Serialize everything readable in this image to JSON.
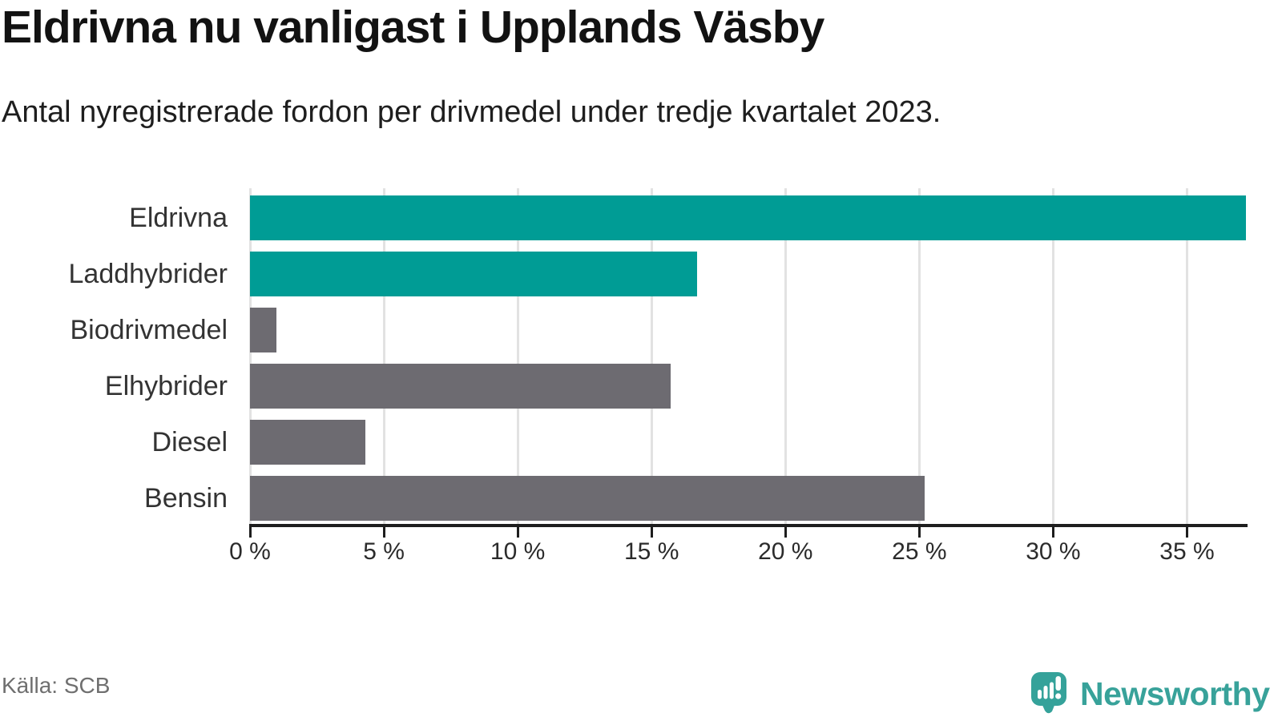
{
  "header": {
    "title": "Eldrivna nu vanligast i Upplands Väsby",
    "subtitle": "Antal nyregistrerade fordon per drivmedel under tredje kvartalet 2023."
  },
  "footer": {
    "source": "Källa: SCB",
    "logo_text": "Newsworthy",
    "logo_color": "#38a29a"
  },
  "colors": {
    "accent_teal": "#009c95",
    "neutral_grey": "#6d6b71",
    "gridline": "#e2e2e2",
    "axis": "#1e1e1e"
  },
  "chart_data": {
    "type": "bar",
    "orientation": "horizontal",
    "title": "Eldrivna nu vanligast i Upplands Väsby",
    "subtitle": "Antal nyregistrerade fordon per drivmedel under tredje kvartalet 2023.",
    "categories": [
      "Eldrivna",
      "Laddhybrider",
      "Biodrivmedel",
      "Elhybrider",
      "Diesel",
      "Bensin"
    ],
    "values": [
      37.2,
      16.7,
      1.0,
      15.7,
      4.3,
      25.2
    ],
    "unit": "%",
    "bar_colors": [
      "#009c95",
      "#009c95",
      "#6d6b71",
      "#6d6b71",
      "#6d6b71",
      "#6d6b71"
    ],
    "xticks": [
      0,
      5,
      10,
      15,
      20,
      25,
      30,
      35
    ],
    "xtick_suffix": " %",
    "xlim": [
      0,
      37.2
    ],
    "grid": true,
    "legend": "none"
  }
}
